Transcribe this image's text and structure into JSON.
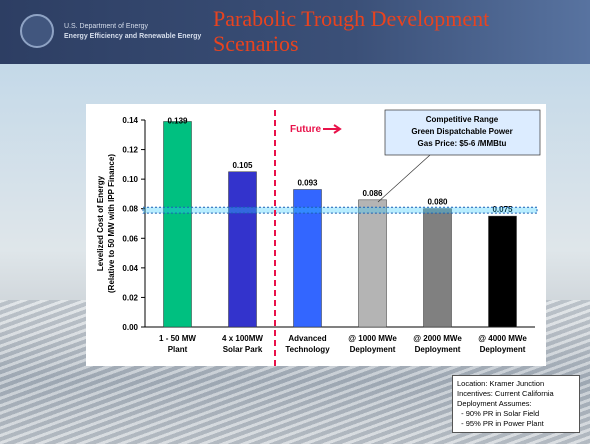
{
  "header": {
    "agency": "U.S. Department of Energy",
    "office": "Energy Efficiency and Renewable Energy",
    "title": "Parabolic Trough Development Scenarios"
  },
  "chart_data": {
    "type": "bar",
    "ylabel": [
      "Levelized Cost of Energy",
      "(Relative to 50 MW with IPP Finance)"
    ],
    "categories": [
      "1 - 50 MW\nPlant",
      "4 x 100MW\nSolar Park",
      "Advanced\nTechnology",
      "@ 1000 MWe\nDeployment",
      "@ 2000 MWe\nDeployment",
      "@ 4000 MWe\nDeployment"
    ],
    "values": [
      0.139,
      0.105,
      0.093,
      0.086,
      0.08,
      0.075
    ],
    "value_labels": [
      "0.139",
      "0.105",
      "0.093",
      "0.086",
      "0.080",
      "0.075"
    ],
    "colors": [
      "#00c080",
      "#3333cc",
      "#3366ff",
      "#b4b4b4",
      "#808080",
      "#000000"
    ],
    "ylim": [
      0,
      0.14
    ],
    "yticks": [
      {
        "value": 0,
        "label": "0.00"
      },
      {
        "value": 0.02,
        "label": "0.02"
      },
      {
        "value": 0.04,
        "label": "0.04"
      },
      {
        "value": 0.06,
        "label": "0.06"
      },
      {
        "value": 0.08,
        "label": "0.08"
      },
      {
        "value": 0.1,
        "label": "0.10"
      },
      {
        "value": 0.12,
        "label": "0.12"
      },
      {
        "value": 0.14,
        "label": "0.14"
      }
    ],
    "band": [
      0.077,
      0.081
    ],
    "band_color": "#33ccff",
    "future": "Future",
    "callout": [
      "Competitive Range",
      "Green Dispatchable Power",
      "Gas Price: $5-6 /MMBtu"
    ]
  },
  "note": [
    "Location: Kramer Junction",
    "Incentives: Current California",
    "Deployment Assumes:",
    "  - 90% PR in Solar Field",
    "  - 95% PR in Power Plant"
  ]
}
